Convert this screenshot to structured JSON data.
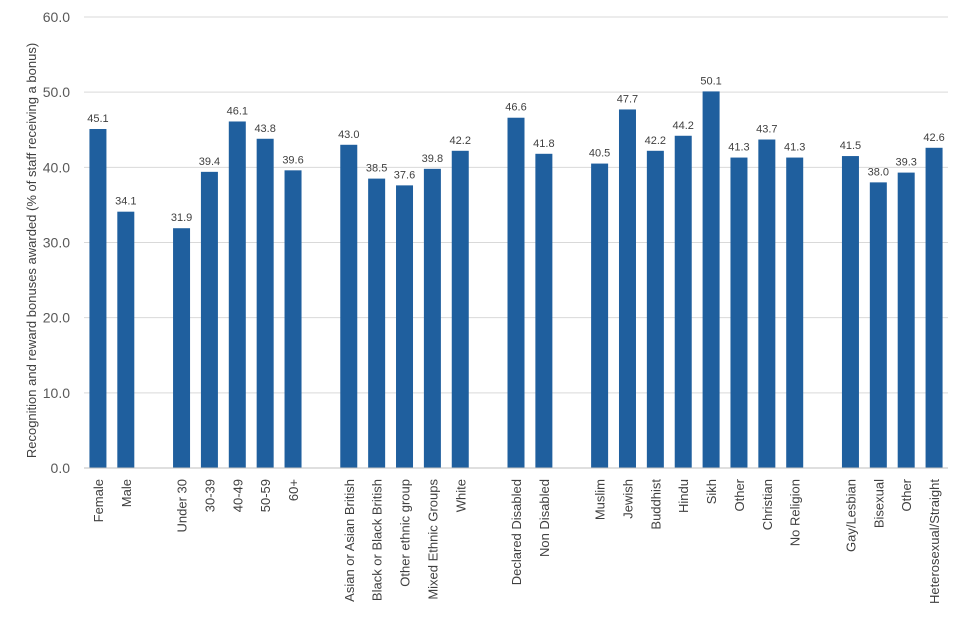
{
  "chart_data": {
    "type": "bar",
    "title": "",
    "xlabel": "",
    "ylabel": "Recognition and reward bonuses awarded (% of staff receiving a bonus)",
    "ylim": [
      0,
      60
    ],
    "yticks": [
      "0.0",
      "10.0",
      "20.0",
      "30.0",
      "40.0",
      "50.0",
      "60.0"
    ],
    "grid": true,
    "bar_color": "#1f5f9e",
    "groups": [
      {
        "categories": [
          "Female",
          "Male"
        ],
        "values": [
          45.1,
          34.1
        ],
        "labels": [
          "45.1",
          "34.1"
        ]
      },
      {
        "categories": [
          "Under 30",
          "30-39",
          "40-49",
          "50-59",
          "60+"
        ],
        "values": [
          31.9,
          39.4,
          46.1,
          43.8,
          39.6
        ],
        "labels": [
          "31.9",
          "39.4",
          "46.1",
          "43.8",
          "39.6"
        ]
      },
      {
        "categories": [
          "Asian or Asian British",
          "Black or Black British",
          "Other ethnic group",
          "Mixed Ethnic Groups",
          "White"
        ],
        "values": [
          43.0,
          38.5,
          37.6,
          39.8,
          42.2
        ],
        "labels": [
          "43.0",
          "38.5",
          "37.6",
          "39.8",
          "42.2"
        ]
      },
      {
        "categories": [
          "Declared Disabled",
          "Non Disabled"
        ],
        "values": [
          46.6,
          41.8
        ],
        "labels": [
          "46.6",
          "41.8"
        ]
      },
      {
        "categories": [
          "Muslim",
          "Jewish",
          "Buddhist",
          "Hindu",
          "Sikh",
          "Other",
          "Christian",
          "No Religion"
        ],
        "values": [
          40.5,
          47.7,
          42.2,
          44.2,
          50.1,
          41.3,
          43.7,
          41.3
        ],
        "labels": [
          "40.5",
          "47.7",
          "42.2",
          "44.2",
          "50.1",
          "41.3",
          "43.7",
          "41.3"
        ]
      },
      {
        "categories": [
          "Gay/Lesbian",
          "Bisexual",
          "Other",
          "Heterosexual/Straight"
        ],
        "values": [
          41.5,
          38.0,
          39.3,
          42.6
        ],
        "labels": [
          "41.5",
          "38.0",
          "39.3",
          "42.6"
        ]
      }
    ]
  }
}
